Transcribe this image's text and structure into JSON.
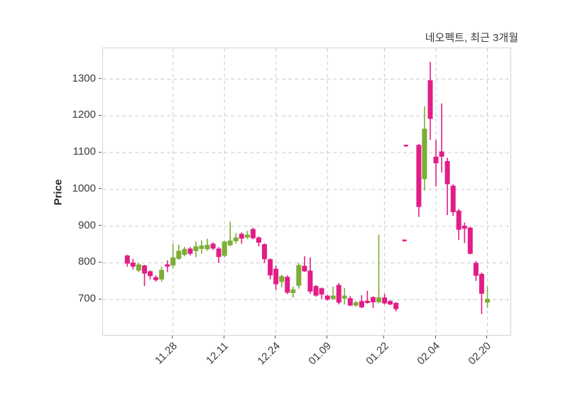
{
  "chart_data": {
    "type": "candlestick",
    "title": "네오펙트, 최근 3개월",
    "ylabel": "Price",
    "yticks": [
      700,
      800,
      900,
      1000,
      1100,
      1200,
      1300
    ],
    "ylim": [
      604,
      1384
    ],
    "num_slots": 64,
    "xticks": [
      {
        "slot": 8,
        "label": "11.28"
      },
      {
        "slot": 17,
        "label": "12.11"
      },
      {
        "slot": 26,
        "label": "12.24"
      },
      {
        "slot": 35,
        "label": "01.09"
      },
      {
        "slot": 45,
        "label": "01.22"
      },
      {
        "slot": 54,
        "label": "02.04"
      },
      {
        "slot": 63,
        "label": "02.20"
      }
    ],
    "legend": "none",
    "grid": "dashed",
    "colors": {
      "up": "#7cae34",
      "down": "#e21d87",
      "grid": "#cccccc",
      "axis_text": "#3a3a3a",
      "border": "#d4d4d4"
    },
    "candles": [
      [
        820,
        822,
        790,
        798
      ],
      [
        801,
        811,
        782,
        790
      ],
      [
        779,
        801,
        775,
        796
      ],
      [
        793,
        795,
        737,
        771
      ],
      [
        777,
        780,
        755,
        764
      ],
      [
        761,
        766,
        749,
        753
      ],
      [
        755,
        790,
        749,
        781
      ],
      [
        796,
        807,
        775,
        790
      ],
      [
        793,
        852,
        785,
        815
      ],
      [
        811,
        849,
        808,
        833
      ],
      [
        822,
        843,
        818,
        838
      ],
      [
        839,
        843,
        820,
        825
      ],
      [
        832,
        858,
        815,
        845
      ],
      [
        838,
        861,
        825,
        847
      ],
      [
        837,
        866,
        833,
        849
      ],
      [
        852,
        856,
        835,
        839
      ],
      [
        839,
        843,
        800,
        816
      ],
      [
        819,
        860,
        815,
        858
      ],
      [
        848,
        912,
        845,
        861
      ],
      [
        859,
        881,
        852,
        869
      ],
      [
        879,
        883,
        852,
        866
      ],
      [
        869,
        887,
        865,
        877
      ],
      [
        892,
        896,
        864,
        867
      ],
      [
        869,
        872,
        845,
        855
      ],
      [
        851,
        853,
        800,
        810
      ],
      [
        810,
        812,
        755,
        766
      ],
      [
        784,
        793,
        726,
        742
      ],
      [
        748,
        768,
        734,
        764
      ],
      [
        762,
        766,
        715,
        719
      ],
      [
        718,
        735,
        705,
        728
      ],
      [
        738,
        800,
        730,
        794
      ],
      [
        792,
        818,
        775,
        777
      ],
      [
        779,
        815,
        716,
        722
      ],
      [
        737,
        740,
        708,
        711
      ],
      [
        731,
        733,
        702,
        714
      ],
      [
        711,
        713,
        697,
        700
      ],
      [
        702,
        735,
        699,
        711
      ],
      [
        740,
        745,
        687,
        692
      ],
      [
        703,
        732,
        687,
        711
      ],
      [
        704,
        710,
        682,
        684
      ],
      [
        684,
        696,
        681,
        693
      ],
      [
        696,
        712,
        677,
        679
      ],
      [
        697,
        724,
        689,
        691
      ],
      [
        707,
        709,
        677,
        693
      ],
      [
        693,
        877,
        690,
        706
      ],
      [
        706,
        716,
        687,
        690
      ],
      [
        696,
        699,
        685,
        687
      ],
      [
        691,
        693,
        668,
        674
      ],
      [
        861,
        863,
        859,
        861,
        4
      ],
      [
        1119,
        1121,
        1117,
        1119,
        -2
      ],
      null,
      [
        1121,
        1124,
        925,
        952
      ],
      [
        1028,
        1226,
        997,
        1165
      ],
      [
        1297,
        1347,
        1135,
        1192
      ],
      [
        1089,
        1135,
        1008,
        1071
      ],
      [
        1103,
        1234,
        1046,
        1089
      ],
      [
        1077,
        1086,
        930,
        1014
      ],
      [
        1010,
        1014,
        928,
        938
      ],
      [
        942,
        947,
        863,
        890
      ],
      [
        901,
        910,
        854,
        893
      ],
      [
        896,
        898,
        823,
        825
      ],
      [
        800,
        805,
        751,
        765
      ],
      [
        770,
        774,
        661,
        716
      ],
      [
        692,
        735,
        677,
        702
      ]
    ]
  }
}
